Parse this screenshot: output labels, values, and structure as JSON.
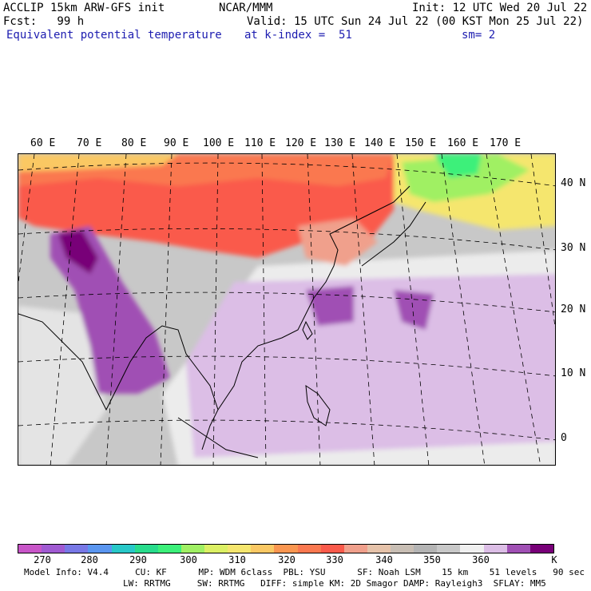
{
  "header": {
    "line1_left": "ACCLIP 15km ARW-GFS init",
    "line1_center": "NCAR/MMM",
    "line1_right": "Init: 12 UTC Wed 20 Jul 22",
    "line2_left": "Fcst:   99 h",
    "line2_right": "Valid: 15 UTC Sun 24 Jul 22 (00 KST Mon 25 Jul 22)",
    "line3_left": "Equivalent potential temperature",
    "line3_center": "at k-index =  51",
    "line3_right": "sm= 2"
  },
  "map": {
    "lon_labels": [
      "60 E",
      "70 E",
      "80 E",
      "90 E",
      "100 E",
      "110 E",
      "120 E",
      "130 E",
      "140 E",
      "150 E",
      "160 E",
      "170 E"
    ],
    "lat_labels": [
      "40 N",
      "30 N",
      "20 N",
      "10 N",
      "0"
    ]
  },
  "colorbar": {
    "colors": [
      "#c855c8",
      "#a05ad2",
      "#7878e6",
      "#5a96f0",
      "#28c8c8",
      "#28dc8c",
      "#3cf07a",
      "#a0f064",
      "#dcf064",
      "#f5e66e",
      "#fac864",
      "#fa9650",
      "#fa7850",
      "#fa5a4b",
      "#f0a08c",
      "#e6c3aa",
      "#c8beb4",
      "#b4b4b4",
      "#c8c8c8",
      "#f0f0f0",
      "#dcbee6",
      "#a050b4",
      "#780078"
    ],
    "ticks": [
      "270",
      "280",
      "290",
      "300",
      "310",
      "320",
      "330",
      "340",
      "350",
      "360",
      "K"
    ]
  },
  "footer": {
    "line1": "Model Info: V4.4     CU: KF      MP: WDM 6class  PBL: YSU      SF: Noah LSM    15 km    51 levels   90 sec",
    "line2": "LW: RRTMG     SW: RRTMG   DIFF: simple KM: 2D Smagor DAMP: Rayleigh3  SFLAY: MM5"
  }
}
